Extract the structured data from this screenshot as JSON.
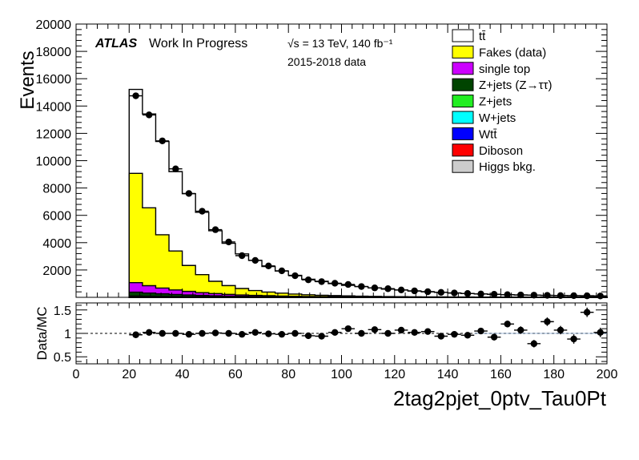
{
  "chart_data": {
    "type": "histogram",
    "atlas_label": "ATLAS",
    "status_label": "Work In Progress",
    "energy_label": "√s = 13 TeV, 140 fb⁻¹",
    "data_label": "2015-2018 data",
    "xlabel": "2tag2pjet_0ptv_Tau0Pt",
    "ylabel": "Events",
    "ratio_ylabel": "Data/MC",
    "xlim": [
      0,
      200
    ],
    "ylim": [
      0,
      20000
    ],
    "ratio_ylim": [
      0.35,
      1.65
    ],
    "ratio_yticks": [
      "0.5",
      "1",
      "1.5"
    ],
    "x_ticks": [
      0,
      20,
      40,
      60,
      80,
      100,
      120,
      140,
      160,
      180,
      200
    ],
    "y_ticks": [
      2000,
      4000,
      6000,
      8000,
      10000,
      12000,
      14000,
      16000,
      18000,
      20000
    ],
    "bin_edges": [
      20,
      25,
      30,
      35,
      40,
      45,
      50,
      55,
      60,
      65,
      70,
      75,
      80,
      85,
      90,
      95,
      100,
      105,
      110,
      115,
      120,
      125,
      130,
      135,
      140,
      145,
      150,
      155,
      160,
      165,
      170,
      175,
      180,
      185,
      190,
      195,
      200
    ],
    "legend": [
      {
        "label": "tt̄",
        "color": "#ffffff"
      },
      {
        "label": "Fakes (data)",
        "color": "#ffff00"
      },
      {
        "label": "single top",
        "color": "#cc00ff"
      },
      {
        "label": "Z+jets (Z→ττ)",
        "color": "#004400"
      },
      {
        "label": "Z+jets",
        "color": "#22ee22"
      },
      {
        "label": "W+jets",
        "color": "#00ffff"
      },
      {
        "label": "Wtt̄",
        "color": "#0000ff"
      },
      {
        "label": "Diboson",
        "color": "#ff0000"
      },
      {
        "label": "Higgs bkg.",
        "color": "#cccccc"
      }
    ],
    "stack": [
      {
        "name": "Higgs bkg.",
        "color": "#cccccc",
        "values": [
          10,
          9,
          8,
          7,
          6,
          5,
          5,
          4,
          4,
          3,
          3,
          3,
          2,
          2,
          2,
          2,
          2,
          2,
          1,
          1,
          1,
          1,
          1,
          1,
          1,
          1,
          1,
          1,
          1,
          1,
          1,
          1,
          1,
          1,
          1,
          1
        ]
      },
      {
        "name": "Diboson",
        "color": "#ff0000",
        "values": [
          15,
          13,
          11,
          9,
          8,
          7,
          6,
          5,
          4,
          4,
          3,
          3,
          3,
          2,
          2,
          2,
          2,
          2,
          1,
          1,
          1,
          1,
          1,
          1,
          1,
          1,
          1,
          1,
          1,
          1,
          1,
          1,
          1,
          1,
          1,
          1
        ]
      },
      {
        "name": "Wtt̄",
        "color": "#0000ff",
        "values": [
          10,
          9,
          8,
          7,
          6,
          5,
          4,
          4,
          3,
          3,
          3,
          2,
          2,
          2,
          2,
          1,
          1,
          1,
          1,
          1,
          1,
          1,
          1,
          1,
          1,
          1,
          1,
          1,
          1,
          1,
          1,
          1,
          1,
          1,
          1,
          1
        ]
      },
      {
        "name": "W+jets",
        "color": "#00ffff",
        "values": [
          20,
          17,
          14,
          12,
          10,
          8,
          7,
          6,
          5,
          4,
          4,
          3,
          3,
          2,
          2,
          2,
          2,
          1,
          1,
          1,
          1,
          1,
          1,
          1,
          1,
          1,
          1,
          1,
          1,
          1,
          1,
          1,
          1,
          1,
          1,
          1
        ]
      },
      {
        "name": "Z+jets",
        "color": "#22ee22",
        "values": [
          40,
          32,
          26,
          21,
          17,
          14,
          11,
          9,
          7,
          6,
          5,
          4,
          3,
          3,
          2,
          2,
          2,
          2,
          1,
          1,
          1,
          1,
          1,
          1,
          1,
          1,
          1,
          1,
          1,
          1,
          1,
          1,
          1,
          1,
          1,
          1
        ]
      },
      {
        "name": "Z+jets (Z→ττ)",
        "color": "#004400",
        "values": [
          280,
          230,
          190,
          155,
          125,
          100,
          80,
          65,
          52,
          42,
          34,
          27,
          22,
          18,
          15,
          12,
          10,
          8,
          7,
          6,
          5,
          4,
          3,
          3,
          2,
          2,
          2,
          2,
          1,
          1,
          1,
          1,
          1,
          1,
          1,
          1
        ]
      },
      {
        "name": "single top",
        "color": "#cc00ff",
        "values": [
          700,
          540,
          420,
          330,
          260,
          200,
          160,
          125,
          100,
          80,
          65,
          52,
          42,
          34,
          28,
          23,
          19,
          16,
          13,
          11,
          9,
          8,
          7,
          6,
          5,
          4,
          4,
          3,
          3,
          3,
          2,
          2,
          2,
          2,
          2,
          2
        ]
      },
      {
        "name": "Fakes (data)",
        "color": "#ffff00",
        "values": [
          8000,
          5700,
          3900,
          2850,
          1900,
          1320,
          900,
          640,
          470,
          350,
          270,
          210,
          160,
          125,
          100,
          80,
          65,
          52,
          42,
          34,
          28,
          23,
          19,
          16,
          13,
          11,
          9,
          8,
          7,
          6,
          5,
          5,
          4,
          4,
          3,
          3
        ]
      },
      {
        "name": "tt̄",
        "color": "#ffffff",
        "values": [
          6140,
          6870,
          6830,
          5810,
          5250,
          4560,
          3700,
          3100,
          2535,
          2207,
          1871,
          1620,
          1372,
          1136,
          1023,
          879,
          777,
          705,
          626,
          543,
          484,
          420,
          374,
          330,
          290,
          255,
          225,
          200,
          180,
          160,
          145,
          130,
          120,
          110,
          100,
          90
        ]
      }
    ],
    "data_points": [
      14750,
      13350,
      11450,
      9400,
      7600,
      6300,
      4950,
      4050,
      3050,
      2700,
      2300,
      1940,
      1580,
      1280,
      1150,
      1030,
      940,
      790,
      690,
      630,
      540,
      470,
      410,
      362,
      320,
      280,
      245,
      220,
      195,
      175,
      160,
      145,
      130,
      120,
      110,
      100
    ],
    "ratio_points": [
      0.97,
      1.02,
      1.0,
      1.0,
      0.98,
      1.0,
      1.01,
      1.0,
      0.98,
      1.02,
      0.99,
      0.98,
      1.0,
      0.95,
      0.94,
      1.02,
      1.1,
      1.0,
      1.08,
      1.0,
      1.07,
      1.02,
      1.04,
      0.94,
      0.98,
      0.96,
      1.05,
      0.92,
      1.2,
      1.07,
      0.78,
      1.25,
      1.07,
      0.88,
      1.45,
      1.02
    ],
    "ratio_errors": [
      0.02,
      0.02,
      0.02,
      0.02,
      0.02,
      0.02,
      0.02,
      0.02,
      0.02,
      0.02,
      0.02,
      0.02,
      0.02,
      0.03,
      0.03,
      0.03,
      0.04,
      0.04,
      0.04,
      0.04,
      0.05,
      0.05,
      0.05,
      0.05,
      0.06,
      0.06,
      0.06,
      0.07,
      0.07,
      0.08,
      0.08,
      0.09,
      0.09,
      0.1,
      0.1,
      0.1
    ]
  }
}
